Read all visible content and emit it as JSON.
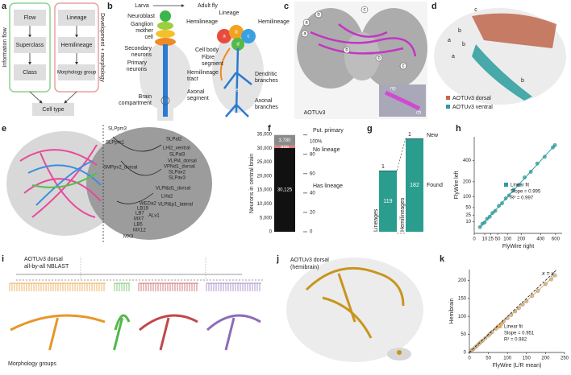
{
  "panel_a": {
    "label": "a",
    "side_left": "Information flow",
    "side_right": "Development + morphology",
    "left_boxes": [
      "Flow",
      "Superclass",
      "Class"
    ],
    "right_boxes": [
      "Lineage",
      "Hemilineage",
      "Morphology group"
    ],
    "bottom": "Cell type"
  },
  "panel_b": {
    "label": "b",
    "top_left": "Larva",
    "top_right": "Adult fly",
    "labels": [
      "Neuroblast",
      "Ganglion",
      "mother",
      "cell",
      "Secondary",
      "neurons",
      "Primary",
      "neurons",
      "Brain",
      "compartment",
      "Lineage",
      "Hemilineage",
      "Hemilineage",
      "Cell body",
      "Fibre",
      "segment",
      "Hemilineage",
      "tract",
      "Dendritic",
      "branches",
      "Axonal",
      "segment",
      "Axonal",
      "branches"
    ],
    "markers": [
      "a",
      "b",
      "c",
      "d",
      "e"
    ]
  },
  "panel_c": {
    "label": "c",
    "caption": "AOTUv3",
    "markers": [
      "a",
      "a",
      "b",
      "b",
      "b",
      "c",
      "c"
    ],
    "inset_labels": [
      "np",
      "cb"
    ]
  },
  "panel_d": {
    "label": "d",
    "markers": [
      "a",
      "b",
      "b",
      "c",
      "a",
      "b"
    ],
    "legend": [
      {
        "name": "AOTUv3 dorsal",
        "color": "#c0674d"
      },
      {
        "name": "AOTUv3 ventral",
        "color": "#2a9d9d"
      }
    ]
  },
  "panel_e": {
    "label": "e",
    "labels": [
      "SLPpm3",
      "SLPpm1",
      "SLPal2",
      "LHl2_ventral",
      "SLPal3",
      "VLPl4_dorsal",
      "SMPpv2_dorsal",
      "VPNd1_dorsal",
      "SLPav2",
      "SLPav3",
      "VLPl&d1_dorsal",
      "LHa2",
      "WEDa2",
      "VLPl&p1_lateral",
      "LB19",
      "LB7",
      "ALv1",
      "MX7",
      "LB5",
      "MX12",
      "MX3"
    ]
  },
  "panel_f": {
    "label": "f",
    "type": "stacked-bar",
    "ylabel": "Neurons in central brain",
    "segments": [
      {
        "name": "Has lineage",
        "value": 30125,
        "value_label": "30,125",
        "color": "#111111"
      },
      {
        "name": "No lineage",
        "value": 886,
        "value_label": "886",
        "color": "#e07b7b"
      },
      {
        "name": "Put. primary",
        "value": 3780,
        "value_label": "3,780",
        "color": "#8a8a8a"
      }
    ],
    "ylim": [
      0,
      35000
    ],
    "yticks": [
      0,
      {
        "value": 5000,
        "label": "5,000"
      },
      {
        "value": 10000,
        "label": "10,000"
      },
      {
        "value": 15000,
        "label": "15,000"
      },
      {
        "value": 20000,
        "label": "20,000"
      },
      {
        "value": 25000,
        "label": "25,000"
      },
      {
        "value": 30000,
        "label": "30,000"
      },
      {
        "value": 35000,
        "label": "35,000"
      }
    ],
    "y2lim": [
      0,
      100
    ],
    "y2ticks": [
      0,
      20,
      40,
      60,
      80,
      {
        "value": 100,
        "label": "100%"
      }
    ]
  },
  "panel_g": {
    "label": "g",
    "type": "stacked-bar",
    "categories": [
      "Lineages",
      "Hemilineages"
    ],
    "series": [
      {
        "name": "Found",
        "color": "#2a9d8f",
        "values": [
          119,
          182
        ]
      },
      {
        "name": "New",
        "color": "#1d3b34",
        "values": [
          1,
          1
        ]
      }
    ]
  },
  "panel_h": {
    "label": "h",
    "type": "scatter",
    "scale": "sqrt",
    "xlabel": "FlyWire right",
    "ylabel": "FlyWire left",
    "color": "#2a9d9d",
    "x": [
      3,
      6,
      10,
      15,
      22,
      30,
      40,
      55,
      70,
      90,
      110,
      140,
      180,
      230,
      290,
      360,
      450,
      560,
      590
    ],
    "values": [
      3,
      7,
      9,
      16,
      21,
      31,
      38,
      57,
      68,
      92,
      108,
      143,
      176,
      235,
      285,
      366,
      440,
      555,
      585
    ],
    "xlim": [
      0,
      700
    ],
    "ylim": [
      0,
      700
    ],
    "xticks": [
      0,
      10,
      25,
      50,
      100,
      200,
      400,
      600
    ],
    "yticks": [
      10,
      25,
      50,
      100,
      200,
      400
    ],
    "legend": [
      "Linear fit",
      "Slope = 0.995",
      "R² = 0.997"
    ]
  },
  "panel_i": {
    "label": "i",
    "title": [
      "AOTUv3 dorsal",
      "all-by-all NBLAST"
    ],
    "caption": "Morphology groups"
  },
  "panel_j": {
    "label": "j",
    "title": [
      "AOTUv3 dorsal",
      "(hemibrain)"
    ]
  },
  "panel_k": {
    "label": "k",
    "type": "scatter",
    "xlabel": "FlyWire (L/R mean)",
    "ylabel": "Hemibrain",
    "color": "#e8a866",
    "annotation": "x = y",
    "x": [
      5,
      10,
      15,
      20,
      25,
      30,
      35,
      42,
      50,
      55,
      60,
      70,
      75,
      85,
      90,
      100,
      110,
      120,
      130,
      140,
      150,
      165,
      180,
      200,
      215,
      225
    ],
    "values": [
      6,
      9,
      14,
      19,
      24,
      29,
      33,
      40,
      47,
      53,
      57,
      66,
      72,
      80,
      86,
      95,
      104,
      114,
      123,
      133,
      142,
      157,
      171,
      190,
      203,
      214
    ],
    "xlim": [
      0,
      250
    ],
    "ylim": [
      0,
      230
    ],
    "xticks": [
      0,
      50,
      100,
      150,
      200,
      250
    ],
    "yticks": [
      0,
      50,
      100,
      150,
      200
    ],
    "legend": [
      "Linear fit",
      "Slope = 0.951",
      "R² = 0.982"
    ]
  }
}
